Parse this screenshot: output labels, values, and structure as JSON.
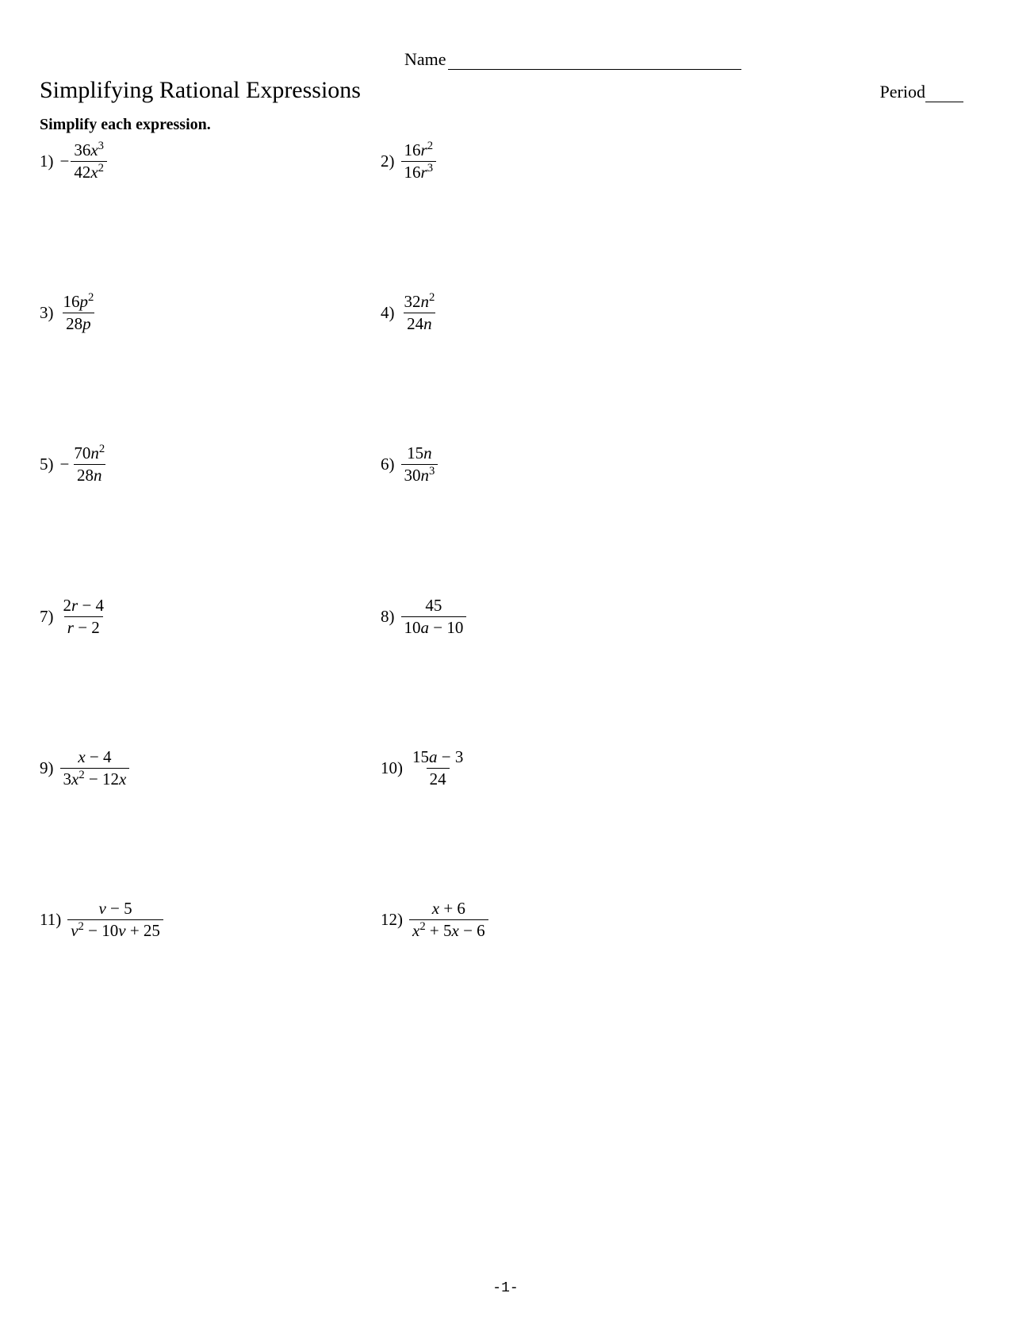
{
  "header": {
    "name_label": "Name",
    "period_label": "Period"
  },
  "title": "Simplifying Rational Expressions",
  "instruction": "Simplify each expression.",
  "problems": [
    {
      "row": 1,
      "col": "left",
      "number": "1)",
      "negative": true,
      "numerator_html": "36<span class='var'>x</span><sup>3</sup>",
      "denominator_html": "42<span class='var'>x</span><sup>2</sup>"
    },
    {
      "row": 1,
      "col": "right",
      "number": "2)",
      "negative": false,
      "numerator_html": "16<span class='var'>r</span><sup>2</sup>",
      "denominator_html": "16<span class='var'>r</span><sup>3</sup>"
    },
    {
      "row": 2,
      "col": "left",
      "number": "3)",
      "negative": false,
      "numerator_html": "16<span class='var'>p</span><sup>2</sup>",
      "denominator_html": "28<span class='var'>p</span>"
    },
    {
      "row": 2,
      "col": "right",
      "number": "4)",
      "negative": false,
      "numerator_html": "32<span class='var'>n</span><sup>2</sup>",
      "denominator_html": "24<span class='var'>n</span>"
    },
    {
      "row": 3,
      "col": "left",
      "number": "5)",
      "negative": true,
      "numerator_html": "70<span class='var'>n</span><sup>2</sup>",
      "denominator_html": "28<span class='var'>n</span>"
    },
    {
      "row": 3,
      "col": "right",
      "number": "6)",
      "negative": false,
      "numerator_html": "15<span class='var'>n</span>",
      "denominator_html": "30<span class='var'>n</span><sup>3</sup>"
    },
    {
      "row": 4,
      "col": "left",
      "number": "7)",
      "negative": false,
      "numerator_html": "2<span class='var'>r</span> − 4",
      "denominator_html": "<span class='var'>r</span> − 2"
    },
    {
      "row": 4,
      "col": "right",
      "number": "8)",
      "negative": false,
      "numerator_html": "45",
      "denominator_html": "10<span class='var'>a</span> − 10"
    },
    {
      "row": 5,
      "col": "left",
      "number": "9)",
      "negative": false,
      "numerator_html": "<span class='var'>x</span> − 4",
      "denominator_html": "3<span class='var'>x</span><sup>2</sup> − 12<span class='var'>x</span>"
    },
    {
      "row": 5,
      "col": "right",
      "number": "10)",
      "negative": false,
      "numerator_html": "15<span class='var'>a</span> − 3",
      "denominator_html": "24"
    },
    {
      "row": 6,
      "col": "left",
      "number": "11)",
      "negative": false,
      "numerator_html": "<span class='var'>v</span> − 5",
      "denominator_html": "<span class='var'>v</span><sup>2</sup> − 10<span class='var'>v</span> + 25"
    },
    {
      "row": 6,
      "col": "right",
      "number": "12)",
      "negative": false,
      "numerator_html": "<span class='var'>x</span> + 6",
      "denominator_html": "<span class='var'>x</span><sup>2</sup> + 5<span class='var'>x</span> − 6"
    }
  ],
  "page_number": "-1-",
  "colors": {
    "text": "#000000",
    "background": "#ffffff"
  }
}
